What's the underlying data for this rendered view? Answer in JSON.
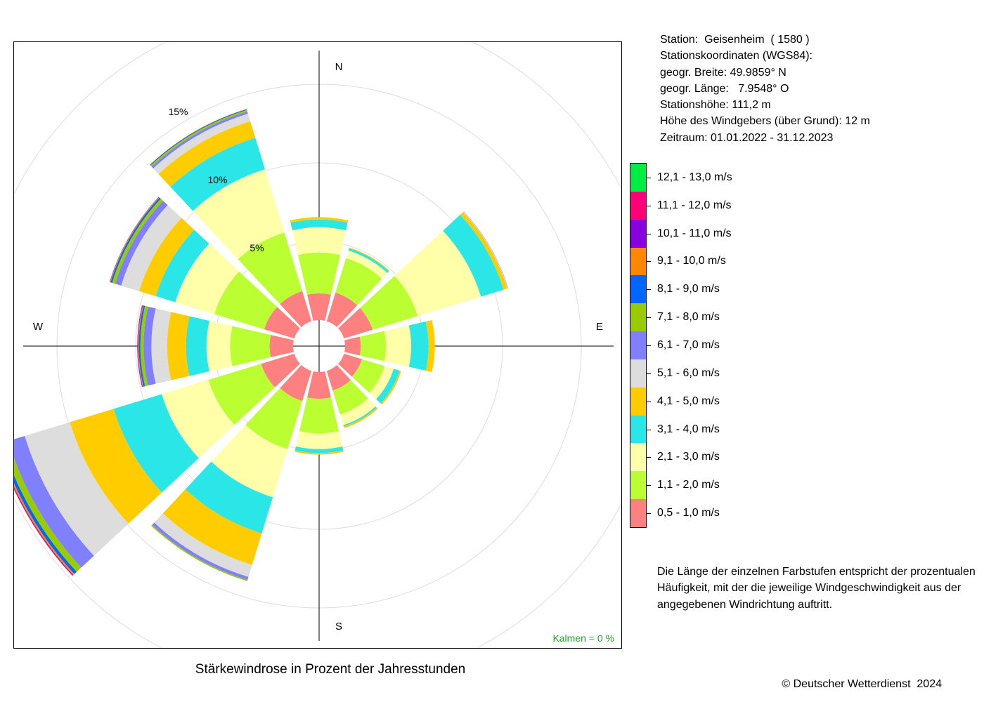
{
  "station": {
    "line1": "Station:  Geisenheim  ( 1580 )",
    "line2": "Stationskoordinaten (WGS84):",
    "line3": "geogr. Breite: 49.9859° N",
    "line4": "geogr. Länge:   7.9548° O",
    "line5": "Stationshöhe: 111,2 m",
    "line6": "Höhe des Windgebers (über Grund): 12 m",
    "line7": "Zeitraum: 01.01.2022 - 31.12.2023"
  },
  "legend_items": [
    {
      "label": "12,1 - 13,0 m/s",
      "color": "#00ee44"
    },
    {
      "label": "11,1 - 12,0 m/s",
      "color": "#ff0077"
    },
    {
      "label": "10,1 - 11,0 m/s",
      "color": "#8800dd"
    },
    {
      "label": "9,1 - 10,0 m/s",
      "color": "#ff8800"
    },
    {
      "label": "8,1 - 9,0 m/s",
      "color": "#0066ff"
    },
    {
      "label": "7,1 - 8,0 m/s",
      "color": "#99cc00"
    },
    {
      "label": "6,1 - 7,0 m/s",
      "color": "#8080ff"
    },
    {
      "label": "5,1 - 6,0 m/s",
      "color": "#dddddd"
    },
    {
      "label": "4,1 - 5,0 m/s",
      "color": "#ffcc00"
    },
    {
      "label": "3,1 - 4,0 m/s",
      "color": "#2ae6e6"
    },
    {
      "label": "2,1 - 3,0 m/s",
      "color": "#ffffaa"
    },
    {
      "label": "1,1 - 2,0 m/s",
      "color": "#bbff33"
    },
    {
      "label": "0,5 - 1,0 m/s",
      "color": "#ff8080"
    }
  ],
  "note": {
    "line1": "Die Länge der einzelnen Farbstufen entspricht der prozentualen",
    "line2": "Häufigkeit, mit der die jeweilige Windgeschwindigkeit aus der",
    "line3": "angegebenen Windrichtung auftritt."
  },
  "chart_title": "Stärkewindrose in Prozent der Jahresstunden",
  "copyright": "© Deutscher Wetterdienst  2024",
  "calm_label": "Kalmen  =  0 %",
  "colors": {
    "calm_text": "#22aa22",
    "grid": "#dddddd",
    "axis": "#000000"
  },
  "chart_data": {
    "type": "wind-rose",
    "title": "Stärkewindrose in Prozent der Jahresstunden",
    "compass_labels": {
      "N": "N",
      "E": "E",
      "S": "S",
      "W": "W"
    },
    "ring_labels": [
      {
        "value": 5,
        "label": "5%"
      },
      {
        "value": 10,
        "label": "10%"
      },
      {
        "value": 15,
        "label": "15%"
      }
    ],
    "grid_rings": [
      5,
      10,
      15,
      20
    ],
    "sector_width_deg": 26,
    "calm_percent": 0,
    "directions": [
      0,
      30,
      60,
      90,
      120,
      150,
      180,
      210,
      240,
      270,
      300,
      330
    ],
    "speed_classes": [
      "0,5 - 1,0 m/s",
      "1,1 - 2,0 m/s",
      "2,1 - 3,0 m/s",
      "3,1 - 4,0 m/s",
      "4,1 - 5,0 m/s",
      "5,1 - 6,0 m/s",
      "6,1 - 7,0 m/s",
      "7,1 - 8,0 m/s",
      "8,1 - 9,0 m/s",
      "9,1 - 10,0 m/s",
      "10,1 - 11,0 m/s",
      "11,1 - 12,0 m/s",
      "12,1 - 13,0 m/s"
    ],
    "values": [
      [
        1.7,
        2.6,
        1.6,
        0.5,
        0.15,
        0,
        0,
        0,
        0,
        0,
        0,
        0,
        0
      ],
      [
        1.9,
        2.3,
        0.5,
        0.15,
        0.05,
        0,
        0,
        0,
        0,
        0,
        0,
        0,
        0
      ],
      [
        1.9,
        3.0,
        4.2,
        1.5,
        0.25,
        0.04,
        0.02,
        0,
        0,
        0,
        0,
        0,
        0
      ],
      [
        1.0,
        1.6,
        1.6,
        1.1,
        0.4,
        0,
        0,
        0,
        0,
        0,
        0,
        0,
        0
      ],
      [
        1.2,
        1.5,
        0.6,
        0.4,
        0.1,
        0,
        0,
        0,
        0,
        0,
        0,
        0,
        0
      ],
      [
        1.3,
        1.6,
        0.7,
        0.1,
        0.1,
        0,
        0,
        0,
        0,
        0,
        0,
        0,
        0
      ],
      [
        1.7,
        2.2,
        1.0,
        0.25,
        0.1,
        0,
        0,
        0,
        0,
        0,
        0,
        0,
        0
      ],
      [
        2.0,
        3.2,
        3.2,
        2.4,
        2.1,
        0.8,
        0.2,
        0.08,
        0,
        0,
        0,
        0,
        0
      ],
      [
        2.2,
        3.5,
        3.1,
        3.2,
        2.9,
        3.0,
        1.1,
        0.4,
        0.2,
        0.1,
        0.04,
        0.03,
        0
      ],
      [
        1.5,
        2.5,
        1.5,
        1.3,
        1.2,
        1.0,
        0.5,
        0.2,
        0.1,
        0.05,
        0.03,
        0.02,
        0
      ],
      [
        2.0,
        3.3,
        2.6,
        1.3,
        1.1,
        1.2,
        0.4,
        0.2,
        0.1,
        0.05,
        0.02,
        0,
        0
      ],
      [
        2.0,
        3.9,
        4.2,
        2.1,
        1.1,
        0.5,
        0.15,
        0.1,
        0.05,
        0.02,
        0,
        0,
        0
      ]
    ]
  }
}
